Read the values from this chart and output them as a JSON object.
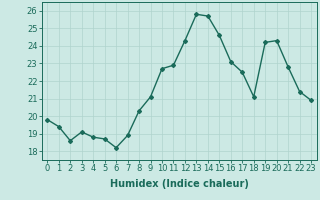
{
  "x": [
    0,
    1,
    2,
    3,
    4,
    5,
    6,
    7,
    8,
    9,
    10,
    11,
    12,
    13,
    14,
    15,
    16,
    17,
    18,
    19,
    20,
    21,
    22,
    23
  ],
  "y": [
    19.8,
    19.4,
    18.6,
    19.1,
    18.8,
    18.7,
    18.2,
    18.9,
    20.3,
    21.1,
    22.7,
    22.9,
    24.3,
    25.8,
    25.7,
    24.6,
    23.1,
    22.5,
    21.1,
    24.2,
    24.3,
    22.8,
    21.4,
    20.9
  ],
  "line_color": "#1a6b5a",
  "marker": "D",
  "marker_size": 2.0,
  "bg_color": "#cce9e4",
  "grid_color": "#b0d4ce",
  "xlabel": "Humidex (Indice chaleur)",
  "xlim": [
    -0.5,
    23.5
  ],
  "ylim": [
    17.5,
    26.5
  ],
  "yticks": [
    18,
    19,
    20,
    21,
    22,
    23,
    24,
    25,
    26
  ],
  "xticks": [
    0,
    1,
    2,
    3,
    4,
    5,
    6,
    7,
    8,
    9,
    10,
    11,
    12,
    13,
    14,
    15,
    16,
    17,
    18,
    19,
    20,
    21,
    22,
    23
  ],
  "xlabel_fontsize": 7,
  "tick_fontsize": 6,
  "line_width": 1.0
}
